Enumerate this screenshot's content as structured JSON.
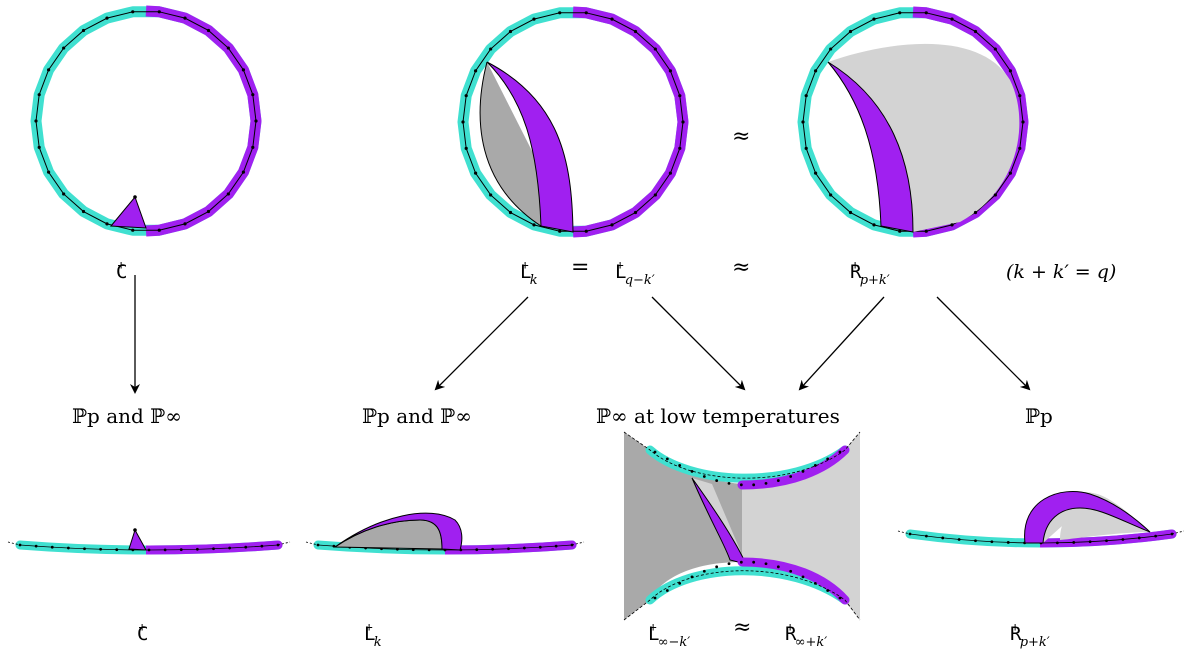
{
  "colors": {
    "cyan": "#40e0d0",
    "purple": "#a020f0",
    "dark_gray": "#a9a9a9",
    "light_gray": "#d3d3d3"
  },
  "top_row": {
    "c_label": {
      "base": "C",
      "sup": "+"
    },
    "l_label": {
      "base": "L",
      "sup": "+",
      "sub": "k"
    },
    "equals": "=",
    "l_alt_label": {
      "base": "L",
      "sup": "+",
      "sub": "q−k′"
    },
    "approx_mid": "≈",
    "approx_label": "≈",
    "r_label": {
      "base": "R",
      "sup": "+",
      "sub": "p+k′"
    },
    "condition": "(k + k′ = q)"
  },
  "middle_row": {
    "limit_1": "ℙp and ℙ∞",
    "limit_2": "ℙp and ℙ∞",
    "limit_3": "ℙ∞ at low temperatures",
    "limit_4": "ℙp"
  },
  "bottom_row": {
    "c_label": {
      "base": "C",
      "sup": "+"
    },
    "l_label": {
      "base": "L",
      "sup": "+",
      "sub": "k"
    },
    "l_inf_label": {
      "base": "L",
      "sup": "+",
      "sub": "∞−k′"
    },
    "approx": "≈",
    "r_inf_label": {
      "base": "R",
      "sup": "+",
      "sub": "∞+k′"
    },
    "r_label": {
      "base": "R",
      "sup": "+",
      "sub": "p+k′"
    }
  }
}
